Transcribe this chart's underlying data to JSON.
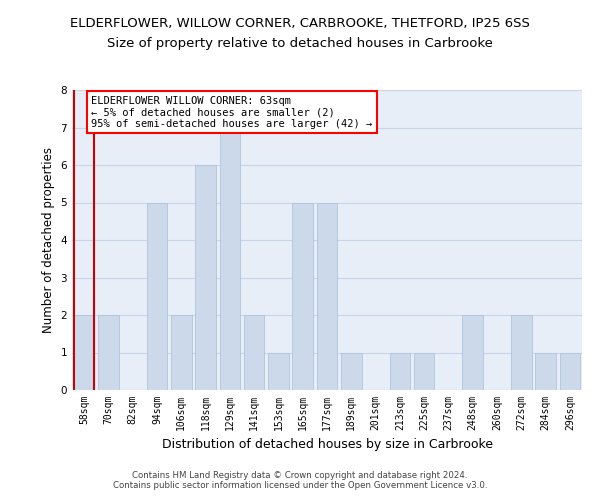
{
  "title": "ELDERFLOWER, WILLOW CORNER, CARBROOKE, THETFORD, IP25 6SS",
  "subtitle": "Size of property relative to detached houses in Carbrooke",
  "xlabel": "Distribution of detached houses by size in Carbrooke",
  "ylabel": "Number of detached properties",
  "categories": [
    "58sqm",
    "70sqm",
    "82sqm",
    "94sqm",
    "106sqm",
    "118sqm",
    "129sqm",
    "141sqm",
    "153sqm",
    "165sqm",
    "177sqm",
    "189sqm",
    "201sqm",
    "213sqm",
    "225sqm",
    "237sqm",
    "248sqm",
    "260sqm",
    "272sqm",
    "284sqm",
    "296sqm"
  ],
  "values": [
    2,
    2,
    0,
    5,
    2,
    6,
    7,
    2,
    1,
    5,
    5,
    1,
    0,
    1,
    1,
    0,
    2,
    0,
    2,
    1,
    1
  ],
  "bar_color": "#ccd9ea",
  "bar_edge_color": "#aec4dc",
  "annotation_box_text": "ELDERFLOWER WILLOW CORNER: 63sqm\n← 5% of detached houses are smaller (2)\n95% of semi-detached houses are larger (42) →",
  "ylim": [
    0,
    8
  ],
  "yticks": [
    0,
    1,
    2,
    3,
    4,
    5,
    6,
    7,
    8
  ],
  "grid_color": "#c8d4e8",
  "background_color": "#e8eef8",
  "footer_line1": "Contains HM Land Registry data © Crown copyright and database right 2024.",
  "footer_line2": "Contains public sector information licensed under the Open Government Licence v3.0.",
  "marker_color": "#cc0000",
  "title_fontsize": 9.5,
  "subtitle_fontsize": 9.5,
  "axis_label_fontsize": 8.5,
  "tick_fontsize": 7,
  "annotation_fontsize": 7.5,
  "footer_fontsize": 6.2
}
